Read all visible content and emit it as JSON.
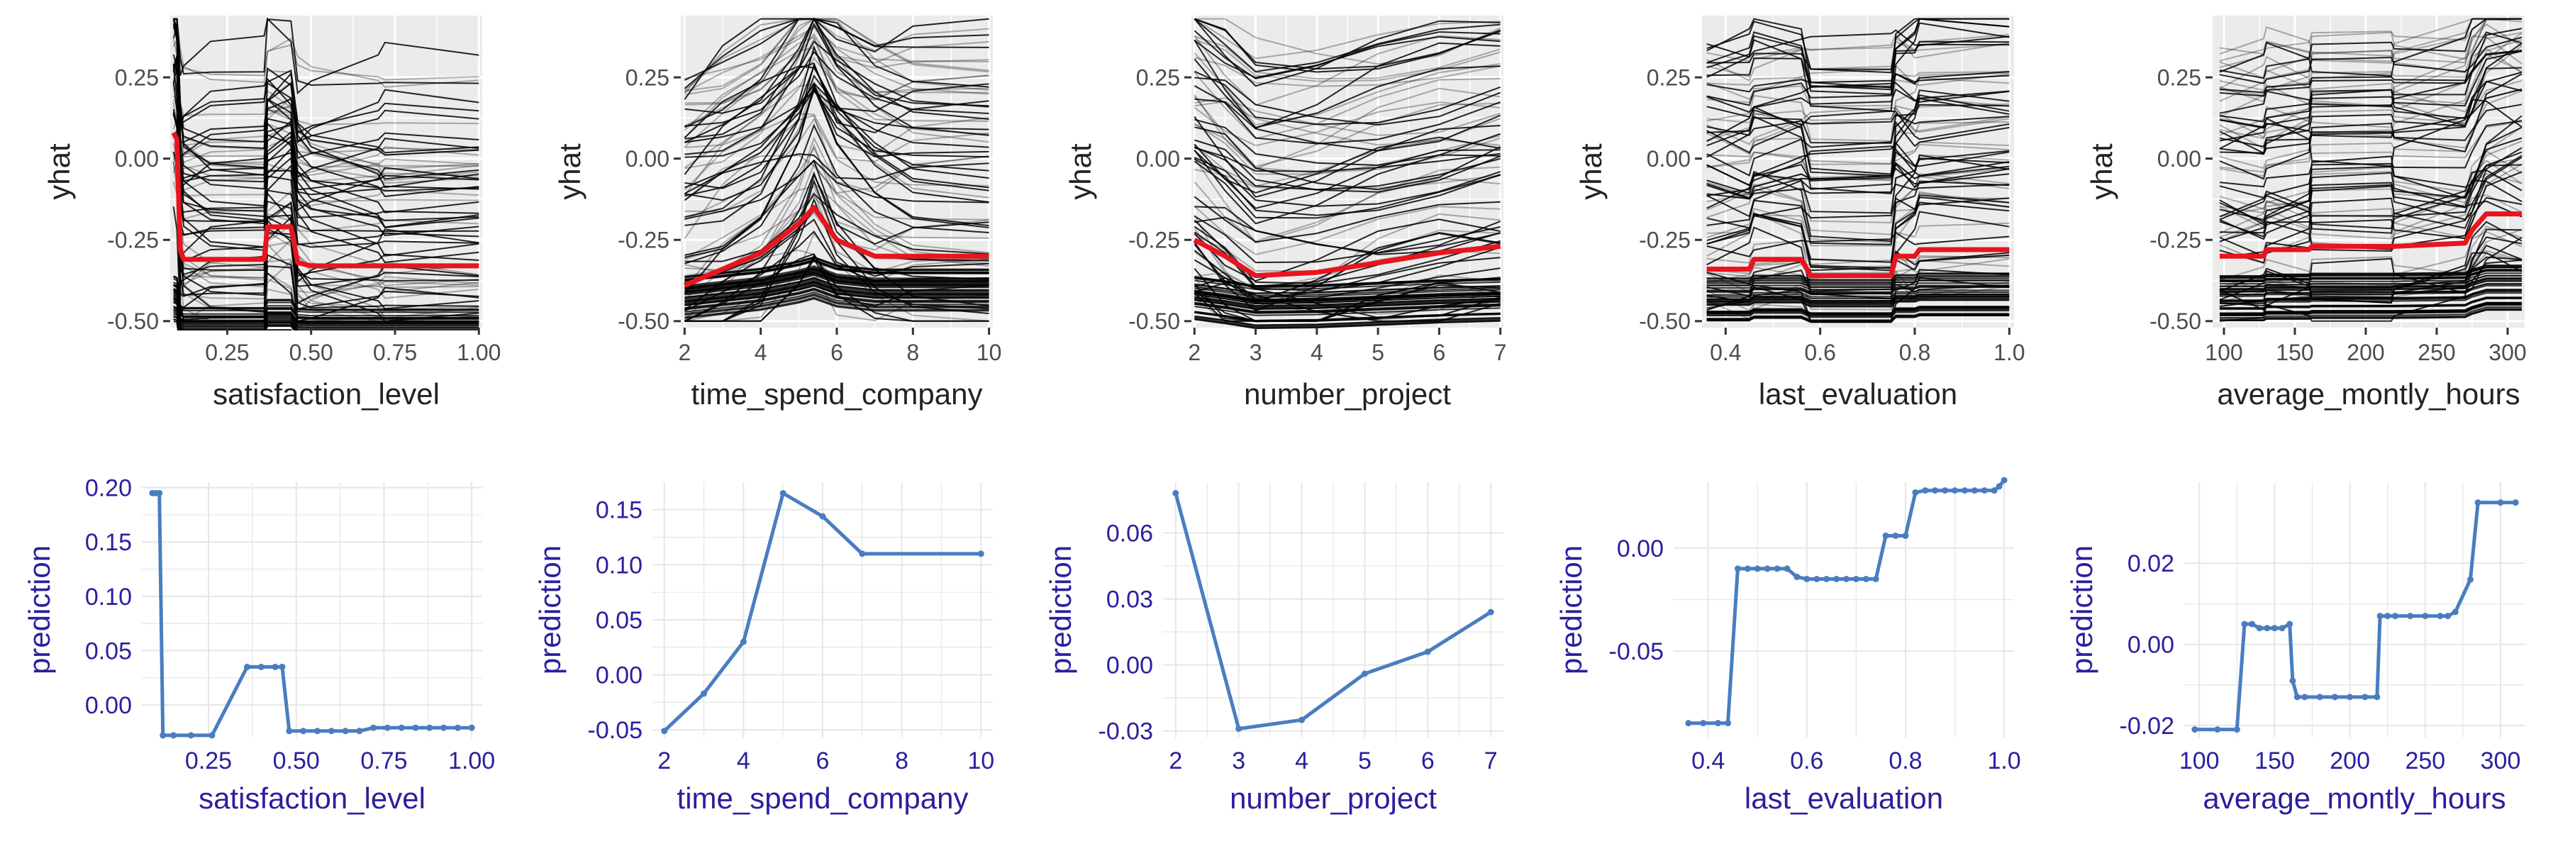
{
  "colors": {
    "panel_bg": "#EBEBEB",
    "grid": "#FFFFFF",
    "ice_line": "#000000",
    "pdp_line": "#E8141E",
    "pdp_axis_text": "#2A1F9E",
    "pdp_line_blue": "#4A7DC0",
    "pdp_grid": "#E6E6E6"
  },
  "chart_data": [
    {
      "type": "line",
      "kind": "ice",
      "xlabel": "satisfaction_level",
      "ylabel": "yhat",
      "xlim": [
        0.08,
        1.01
      ],
      "ylim": [
        -0.52,
        0.44
      ],
      "xticks": [
        0.25,
        0.5,
        0.75,
        1.0
      ],
      "xtick_labels": [
        "0.25",
        "0.50",
        "0.75",
        "1.00"
      ],
      "yticks": [
        -0.5,
        -0.25,
        0.0,
        0.25
      ],
      "ytick_labels": [
        "-0.50",
        "-0.25",
        "0.00",
        "0.25"
      ],
      "pdp": {
        "x": [
          0.09,
          0.1,
          0.11,
          0.12,
          0.2,
          0.36,
          0.37,
          0.44,
          0.46,
          0.5,
          0.7,
          0.72,
          1.0
        ],
        "y": [
          0.08,
          0.06,
          -0.28,
          -0.31,
          -0.31,
          -0.31,
          -0.21,
          -0.21,
          -0.32,
          -0.33,
          -0.33,
          -0.33,
          -0.33
        ]
      }
    },
    {
      "type": "line",
      "kind": "ice",
      "xlabel": "time_spend_company",
      "ylabel": "yhat",
      "xlim": [
        1.9,
        10.1
      ],
      "ylim": [
        -0.52,
        0.44
      ],
      "xticks": [
        2,
        4,
        6,
        8,
        10
      ],
      "xtick_labels": [
        "2",
        "4",
        "6",
        "8",
        "10"
      ],
      "yticks": [
        -0.5,
        -0.25,
        0.0,
        0.25
      ],
      "ytick_labels": [
        "-0.50",
        "-0.25",
        "0.00",
        "0.25"
      ],
      "pdp": {
        "x": [
          2,
          3,
          4,
          5,
          5.4,
          6,
          7,
          8,
          10
        ],
        "y": [
          -0.39,
          -0.34,
          -0.29,
          -0.2,
          -0.15,
          -0.25,
          -0.3,
          -0.3,
          -0.3
        ]
      }
    },
    {
      "type": "line",
      "kind": "ice",
      "xlabel": "number_project",
      "ylabel": "yhat",
      "xlim": [
        1.95,
        7.05
      ],
      "ylim": [
        -0.52,
        0.44
      ],
      "xticks": [
        2,
        3,
        4,
        5,
        6,
        7
      ],
      "xtick_labels": [
        "2",
        "3",
        "4",
        "5",
        "6",
        "7"
      ],
      "yticks": [
        -0.5,
        -0.25,
        0.0,
        0.25
      ],
      "ytick_labels": [
        "-0.50",
        "-0.25",
        "0.00",
        "0.25"
      ],
      "pdp": {
        "x": [
          2,
          2.5,
          3,
          4,
          5,
          6,
          7
        ],
        "y": [
          -0.25,
          -0.3,
          -0.36,
          -0.35,
          -0.32,
          -0.29,
          -0.27
        ]
      }
    },
    {
      "type": "line",
      "kind": "ice",
      "xlabel": "last_evaluation",
      "ylabel": "yhat",
      "xlim": [
        0.35,
        1.01
      ],
      "ylim": [
        -0.52,
        0.44
      ],
      "xticks": [
        0.4,
        0.6,
        0.8,
        1.0
      ],
      "xtick_labels": [
        "0.4",
        "0.6",
        "0.8",
        "1.0"
      ],
      "yticks": [
        -0.5,
        -0.25,
        0.0,
        0.25
      ],
      "ytick_labels": [
        "-0.50",
        "-0.25",
        "0.00",
        "0.25"
      ],
      "pdp": {
        "x": [
          0.36,
          0.45,
          0.46,
          0.56,
          0.58,
          0.75,
          0.76,
          0.8,
          0.81,
          1.0
        ],
        "y": [
          -0.34,
          -0.34,
          -0.31,
          -0.31,
          -0.36,
          -0.36,
          -0.3,
          -0.3,
          -0.28,
          -0.28
        ]
      }
    },
    {
      "type": "line",
      "kind": "ice",
      "xlabel": "average_montly_hours",
      "ylabel": "yhat",
      "xlim": [
        92,
        312
      ],
      "ylim": [
        -0.52,
        0.44
      ],
      "xticks": [
        100,
        150,
        200,
        250,
        300
      ],
      "xtick_labels": [
        "100",
        "150",
        "200",
        "250",
        "300"
      ],
      "yticks": [
        -0.5,
        -0.25,
        0.0,
        0.25
      ],
      "ytick_labels": [
        "-0.50",
        "-0.25",
        "0.00",
        "0.25"
      ],
      "pdp": {
        "x": [
          97,
          128,
          130,
          160,
          162,
          218,
          220,
          270,
          275,
          285,
          310
        ],
        "y": [
          -0.3,
          -0.3,
          -0.28,
          -0.28,
          -0.27,
          -0.27,
          -0.27,
          -0.26,
          -0.22,
          -0.17,
          -0.17
        ]
      }
    },
    {
      "type": "line",
      "kind": "pdp",
      "xlabel": "satisfaction_level",
      "ylabel": "prediction",
      "xlim": [
        0.06,
        1.03
      ],
      "ylim": [
        -0.03,
        0.205
      ],
      "xticks": [
        0.25,
        0.5,
        0.75,
        1.0
      ],
      "xtick_labels": [
        "0.25",
        "0.50",
        "0.75",
        "1.00"
      ],
      "yticks": [
        0.0,
        0.05,
        0.1,
        0.15,
        0.2
      ],
      "ytick_labels": [
        "0.00",
        "0.05",
        "0.10",
        "0.15",
        "0.20"
      ],
      "x": [
        0.09,
        0.1,
        0.11,
        0.12,
        0.15,
        0.2,
        0.26,
        0.36,
        0.4,
        0.44,
        0.46,
        0.48,
        0.52,
        0.56,
        0.6,
        0.64,
        0.68,
        0.72,
        0.76,
        0.8,
        0.84,
        0.88,
        0.92,
        0.96,
        1.0
      ],
      "y": [
        0.195,
        0.195,
        0.195,
        -0.028,
        -0.028,
        -0.028,
        -0.028,
        0.035,
        0.035,
        0.035,
        0.035,
        -0.024,
        -0.024,
        -0.024,
        -0.024,
        -0.024,
        -0.024,
        -0.021,
        -0.021,
        -0.021,
        -0.021,
        -0.021,
        -0.021,
        -0.021,
        -0.021
      ]
    },
    {
      "type": "line",
      "kind": "pdp",
      "xlabel": "time_spend_company",
      "ylabel": "prediction",
      "xlim": [
        1.7,
        10.3
      ],
      "ylim": [
        -0.057,
        0.175
      ],
      "xticks": [
        2,
        4,
        6,
        8,
        10
      ],
      "xtick_labels": [
        "2",
        "4",
        "6",
        "8",
        "10"
      ],
      "yticks": [
        -0.05,
        0.0,
        0.05,
        0.1,
        0.15
      ],
      "ytick_labels": [
        "-0.05",
        "0.00",
        "0.05",
        "0.10",
        "0.15"
      ],
      "x": [
        2,
        3,
        4,
        5,
        6,
        7,
        10
      ],
      "y": [
        -0.051,
        -0.017,
        0.03,
        0.165,
        0.144,
        0.11,
        0.11
      ]
    },
    {
      "type": "line",
      "kind": "pdp",
      "xlabel": "number_project",
      "ylabel": "prediction",
      "xlim": [
        1.8,
        7.2
      ],
      "ylim": [
        -0.033,
        0.083
      ],
      "xticks": [
        2,
        3,
        4,
        5,
        6,
        7
      ],
      "xtick_labels": [
        "2",
        "3",
        "4",
        "5",
        "6",
        "7"
      ],
      "yticks": [
        -0.03,
        0.0,
        0.03,
        0.06
      ],
      "ytick_labels": [
        "-0.03",
        "0.00",
        "0.03",
        "0.06"
      ],
      "x": [
        2,
        3,
        4,
        5,
        6,
        7
      ],
      "y": [
        0.078,
        -0.029,
        -0.025,
        -0.004,
        0.006,
        0.024
      ]
    },
    {
      "type": "line",
      "kind": "pdp",
      "xlabel": "last_evaluation",
      "ylabel": "prediction",
      "xlim": [
        0.33,
        1.02
      ],
      "ylim": [
        -0.092,
        0.032
      ],
      "xticks": [
        0.4,
        0.6,
        0.8,
        1.0
      ],
      "xtick_labels": [
        "0.4",
        "0.6",
        "0.8",
        "1.0"
      ],
      "yticks": [
        -0.05,
        0.0
      ],
      "ytick_labels": [
        "-0.05",
        "0.00"
      ],
      "x": [
        0.36,
        0.39,
        0.42,
        0.44,
        0.46,
        0.48,
        0.5,
        0.52,
        0.54,
        0.56,
        0.58,
        0.6,
        0.62,
        0.64,
        0.66,
        0.68,
        0.7,
        0.72,
        0.74,
        0.76,
        0.78,
        0.8,
        0.82,
        0.84,
        0.86,
        0.88,
        0.9,
        0.92,
        0.94,
        0.96,
        0.98,
        0.99,
        1.0
      ],
      "y": [
        -0.085,
        -0.085,
        -0.085,
        -0.085,
        -0.01,
        -0.01,
        -0.01,
        -0.01,
        -0.01,
        -0.01,
        -0.014,
        -0.015,
        -0.015,
        -0.015,
        -0.015,
        -0.015,
        -0.015,
        -0.015,
        -0.015,
        0.006,
        0.006,
        0.006,
        0.027,
        0.028,
        0.028,
        0.028,
        0.028,
        0.028,
        0.028,
        0.028,
        0.028,
        0.03,
        0.033
      ]
    },
    {
      "type": "line",
      "kind": "pdp",
      "xlabel": "average_montly_hours",
      "ylabel": "prediction",
      "xlim": [
        90,
        316
      ],
      "ylim": [
        -0.023,
        0.04
      ],
      "xticks": [
        100,
        150,
        200,
        250,
        300
      ],
      "xtick_labels": [
        "100",
        "150",
        "200",
        "250",
        "300"
      ],
      "yticks": [
        -0.02,
        0.0,
        0.02
      ],
      "ytick_labels": [
        "-0.02",
        "0.00",
        "0.02"
      ],
      "x": [
        97,
        112,
        125,
        130,
        135,
        140,
        145,
        150,
        155,
        160,
        162,
        165,
        170,
        180,
        190,
        200,
        210,
        218,
        220,
        225,
        230,
        240,
        250,
        260,
        265,
        270,
        280,
        285,
        300,
        310
      ],
      "y": [
        -0.021,
        -0.021,
        -0.021,
        0.005,
        0.005,
        0.004,
        0.004,
        0.004,
        0.004,
        0.005,
        -0.009,
        -0.013,
        -0.013,
        -0.013,
        -0.013,
        -0.013,
        -0.013,
        -0.013,
        0.007,
        0.007,
        0.007,
        0.007,
        0.007,
        0.007,
        0.007,
        0.008,
        0.016,
        0.035,
        0.035,
        0.035
      ]
    }
  ]
}
